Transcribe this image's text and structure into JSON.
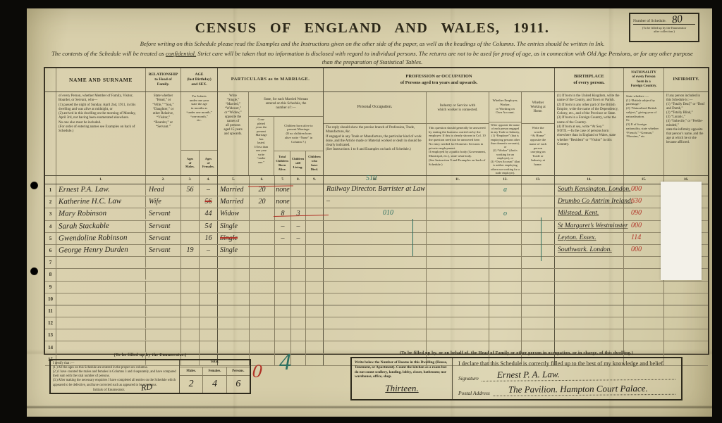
{
  "schedule_box": {
    "label": "Number of Schedule.",
    "number": "80",
    "note": "(To be filled up by the Enumerator\nafter collection.)"
  },
  "header": {
    "title": "CENSUS  OF  ENGLAND  AND  WALES,  1911.",
    "intro1": "Before writing on this Schedule please read the Examples and the Instructions given on the other side of the paper, as well as the headings of the Columns.   The entries should be written in Ink.",
    "intro2_pre": "The contents of the Schedule will be treated as ",
    "intro2_underlined": "confidential.",
    "intro2_post": "   Strict care will be taken that no information is disclosed with regard to individual persons.   The returns are not to be used for proof of age, as in connection with Old Age Pensions, or for any other purpose\nthan the preparation of Statistical Tables."
  },
  "table": {
    "heads": {
      "name_title": "NAME AND SURNAME",
      "name_desc": "of every Person, whether Member of Family, Visitor, Boarder, or Servant, who—\n(1) passed the night of Sunday, April 2nd, 1911, in this dwelling and was alive at midnight, or\n(2) arrived in this dwelling on the morning of Monday, April 3rd, not having been enumerated elsewhere.\nNo one else must be included.\n(For order of entering names see Examples on back of Schedule.)",
      "rel_title": "RELATIONSHIP\nto Head of\nFamily.",
      "rel_desc": "State whether\n“Head,” or\n“Wife,” “Son,”\n“Daughter,” or\nother Relative,\n“Visitor,”\n“Boarder,” or\n“Servant.”",
      "age_title": "AGE\n(last Birthday)\nand SEX.",
      "age_desc": "For Infants\nunder one year\nstate the age\nin months as\n“under one month,”\n“one month,”\netc.",
      "age_males": "Ages\nof\nMales.",
      "age_females": "Ages\nof\nFemales.",
      "mar_title": "PARTICULARS as to MARRIAGE.",
      "mar5_desc": "Write\n“Single,”\n“Married,”\n“Widower,”\nor “Widow,”\nopposite the\nnames of\nall persons\naged 15 years\nand upwards.",
      "mar_group": "State, for each Married Woman\nentered on this Schedule, the\nnumber of :—",
      "mar6_desc": "Com-\npleted\nyears the\npresent\nMarriage\nhas\nlasted.\nIf less than\none year\nwrite\n“under\none.”",
      "mar_children": "Children born alive to\npresent Marriage.\n(If no children born\nalive write “None” in\nColumn 7.)",
      "mar7": "Total\nChildren\nBorn\nAlive.",
      "mar8": "Children\nstill\nLiving.",
      "mar9": "Children\nwho\nhave\nDied.",
      "prof_title": "PROFESSION or OCCUPATION\nof Persons aged ten years and upwards.",
      "occ10_title": "Personal Occupation.",
      "occ10_desc": "The reply should show the precise branch of Profession, Trade, Manufacture, &c.\nIf engaged in any Trade or Manufacture, the particular kind of work done, and the Article made or Material worked or dealt in should be clearly indicated.\n(See Instructions 1 to 8 and Examples on back of Schedule.)",
      "ind11_title": "Industry or Service with\nwhich worker is connected.",
      "ind11_desc": "This question should generally be answered by stating the business carried on by the employer. If this is clearly shown in Col. 10 the question need not be answered here.\nNo entry needed for Domestic Servants in private employment.\nIf employed by a public body (Government, Municipal, etc.), state what body.\n(See Instruction 9 and Examples on back of Schedule.)",
      "emp12_title": "Whether Employer,\nWorker,\nor Working on\nOwn Account.",
      "emp12_desc": "Write opposite the name of each person engaged in any Trade or Industry,\n(1) “Employer” (that is employing persons other than domestic servants), or\n(2) “Worker” (that is working for an employer), or\n(3) “Own Account” (that is neither employing others nor working for a trade employer).",
      "home13_title": "Whether\nWorking at\nHome.",
      "home13_desc": "Write the\nwords\n“At Home”\nopposite the\nname of each\nperson\ncarrying on\nTrade or\nIndustry at\nhome.",
      "birth_title": "BIRTHPLACE\nof every person.",
      "birth_desc": "(1) If born in the United Kingdom, write the name of the County, and Town or Parish.\n(2) If born in any other part of the British Empire, write the name of the Dependency, Colony, etc., and of the Province or State.\n(3) If born in a Foreign Country, write the name of the Country.\n(4) If born at sea, write “At Sea.”\nNOTE.—In the case of persons born elsewhere than in England or Wales, state whether “Resident” or “Visitor” in this Country.",
      "nat_title": "NATIONALITY\nof every Person\nborn in a\nForeign Country.",
      "nat_desc": "State whether :—\n(1) “British subject by parentage.”\n(2) “Naturalised British subject,” giving year of naturalisation.\nOr\n(3) If of foreign nationality, state whether “French,” “German,” “Russian,” etc.",
      "inf_title": "INFIRMITY.",
      "inf_desc": "If any person included in this Schedule is :—\n(1) “Totally Deaf,” or “Deaf and Dumb,”\n(2) “Totally Blind,”\n(3) “Lunatic,”\n(4) “Imbecile,” or “Feeble-minded,”\nstate the infirmity opposite that person’s name, and the age at which he or she became afflicted."
    },
    "col_numbers": [
      "1.",
      "2.",
      "3.",
      "4.",
      "5.",
      "6.",
      "7.",
      "8.",
      "9.",
      "10.",
      "11.",
      "12.",
      "13.",
      "14.",
      "15.",
      "16."
    ]
  },
  "rows": [
    {
      "num": "1",
      "name": "Ernest P.A. Law.",
      "rel": "Head",
      "age_m": "56",
      "age_f": "–",
      "marriage": "Married",
      "years": "20",
      "born": "none",
      "occupation": "Railway Director. Barrister at Law",
      "emp_mark": "a",
      "birthplace": "South Kensington. London.",
      "nat_code": "000"
    },
    {
      "num": "2",
      "name": "Katherine H.C. Law",
      "rel": "Wife",
      "age_f": "56",
      "age_f_struck": true,
      "marriage": "Married",
      "years": "20",
      "born": "none",
      "occupation": "–",
      "birthplace": "Drumbo Co Antrim Ireland.",
      "nat_code": "630"
    },
    {
      "num": "3",
      "name": "Mary Robinson",
      "rel": "Servant",
      "age_f": "44",
      "marriage": "Widow",
      "born": "8",
      "living": "3",
      "occ_mark": "010",
      "emp_mark": "o",
      "birthplace": "Milstead. Kent.",
      "nat_code": "090"
    },
    {
      "num": "4",
      "name": "Sarah Stackable",
      "rel": "Servant",
      "age_f": "54",
      "marriage": "Single",
      "born": "–",
      "living": "–",
      "birthplace": "St Margaret’s Westminster",
      "nat_code": "000"
    },
    {
      "num": "5",
      "name": "Gwendoline Robinson",
      "rel": "Servant",
      "age_f": "16",
      "marriage": "Single",
      "marriage_struck": true,
      "born": "–",
      "living": "–",
      "birthplace": "Leyton. Essex.",
      "nat_code": "114"
    },
    {
      "num": "6",
      "name": "George Henry Durden",
      "rel": "Servant",
      "age_m": "19",
      "age_f": "–",
      "marriage": "Single",
      "birthplace": "Southwark. London.",
      "nat_code": "000"
    },
    {
      "num": "7"
    },
    {
      "num": "8"
    },
    {
      "num": "9"
    },
    {
      "num": "10"
    },
    {
      "num": "11"
    },
    {
      "num": "12"
    },
    {
      "num": "13"
    },
    {
      "num": "14"
    },
    {
      "num": "15"
    }
  ],
  "marks": {
    "code_510": "510",
    "red_zero": "0",
    "green_four": "4"
  },
  "footer": {
    "enum_label": "(To be filled up by the Enumerator.)",
    "certify": "I certify that :—\n(1.) All the ages on this Schedule are entered in the proper sex columns.\n(2.) I have counted the males and females in Columns 3 and 4 separately, and have compared their sum with the total number of persons.\n(3.) After making the necessary enquiries I have completed all entries on the Schedule which appeared to be defective, and have corrected such as appeared to be erroneous.",
    "initials_label": "Initials of Enumerator.",
    "initials_value": "RD",
    "totals_title": "Total.",
    "totals_cols": [
      "Males.",
      "Females.",
      "Persons."
    ],
    "totals_vals": [
      "2",
      "4",
      "6"
    ],
    "family_label": "(To be filled up by, or on behalf of, the Head of Family or other person in occupation, or in charge, of this dwelling.)",
    "rooms_text": "Write below the Number of Rooms in this Dwelling (House, Tenement, or Apartment).  Count the kitchen as a room but do not count scullery, landing, lobby, closet, bathroom; nor warehouse, office, shop.",
    "rooms_value": "Thirteen.",
    "decl_text": "I declare that this Schedule is correctly filled up to the best of my knowledge and belief.",
    "sig_label": "Signature",
    "sig_value": "Ernest P. A. Law.",
    "addr_label": "Postal Address",
    "addr_value": "The Pavilion.   Hampton Court Palace."
  }
}
